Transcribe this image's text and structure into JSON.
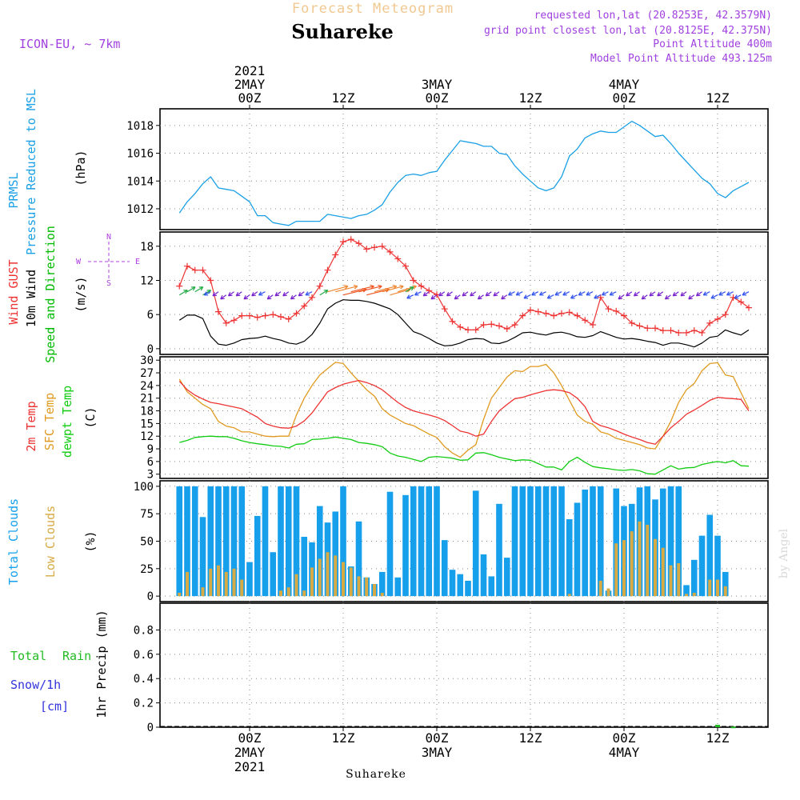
{
  "header": {
    "title": "Forecast Meteogram",
    "location": "Suhareke",
    "model": "ICON-EU, ~ 7km",
    "requested": "requested lon,lat (20.8253E, 42.3579N)",
    "grid": "grid point closest lon,lat (20.8125E, 42.375N)",
    "alt_point": "Point Altitude 400m",
    "alt_model": "Model Point Altitude 493.125m"
  },
  "footer": {
    "location": "Suhareke",
    "credit": "by Angel"
  },
  "time_axis": {
    "top_labels": [
      {
        "hour": 0,
        "lines": [
          "2021",
          "2MAY",
          "00Z"
        ]
      },
      {
        "hour": 12,
        "lines": [
          "12Z"
        ]
      },
      {
        "hour": 24,
        "lines": [
          "3MAY",
          "00Z"
        ]
      },
      {
        "hour": 36,
        "lines": [
          "12Z"
        ]
      },
      {
        "hour": 48,
        "lines": [
          "4MAY",
          "00Z"
        ]
      },
      {
        "hour": 60,
        "lines": [
          "12Z"
        ]
      }
    ],
    "bottom_labels": [
      {
        "hour": 0,
        "lines": [
          "00Z",
          "2MAY",
          "2021"
        ]
      },
      {
        "hour": 12,
        "lines": [
          "12Z"
        ]
      },
      {
        "hour": 24,
        "lines": [
          "00Z",
          "3MAY"
        ]
      },
      {
        "hour": 36,
        "lines": [
          "12Z"
        ]
      },
      {
        "hour": 48,
        "lines": [
          "00Z",
          "4MAY"
        ]
      },
      {
        "hour": 60,
        "lines": [
          "12Z"
        ]
      }
    ]
  },
  "colors": {
    "pressure": "#1aa0e6",
    "gust": "#ee3333",
    "wind": "#000000",
    "direction": "#00bb00",
    "temp2m": "#ee3333",
    "sfc": "#e09a20",
    "dew": "#11cc11",
    "total_clouds": "#16a0ec",
    "low_clouds": "#d8aa44",
    "header_title": "#f0c890",
    "header_info": "#a040e0",
    "rain": "#22bb22",
    "snow": "#3333dd"
  },
  "panels": {
    "pressure": {
      "labels": [
        "PRMSL",
        "Pressure Reduced to MSL"
      ],
      "unit": "(hPa)"
    },
    "wind": {
      "gust_label": "Wind GUST",
      "wind_label": "10m Wind",
      "dir_label": "Speed and Direction",
      "unit": "(m/s)",
      "compass": {
        "n": "N",
        "s": "S",
        "w": "W",
        "e": "E"
      }
    },
    "temp": {
      "t2m_label": "2m Temp",
      "sfc_label": "SFC Temp",
      "dew_label": "dewpt Temp",
      "unit": "(C)"
    },
    "clouds": {
      "total_label": "Total Clouds",
      "low_label": "Low Clouds",
      "unit": "(%)"
    },
    "precip": {
      "total_label": "Total",
      "rain_label": "Rain",
      "snow_label": "Snow/1h",
      "snow_unit": "[cm]",
      "axis_label": "1hr Precip (mm)"
    }
  },
  "chart_data": [
    {
      "type": "line",
      "title": "PRMSL Pressure Reduced to MSL",
      "ylabel": "(hPa)",
      "ylim": [
        1010.5,
        1019.2
      ],
      "yticks": [
        1012,
        1014,
        1016,
        1018
      ],
      "x_hours": [
        -9,
        -8,
        -7,
        -6,
        -5,
        -4,
        -3,
        -2,
        -1,
        0,
        1,
        2,
        3,
        4,
        5,
        6,
        7,
        8,
        9,
        10,
        11,
        12,
        13,
        14,
        15,
        16,
        17,
        18,
        19,
        20,
        21,
        22,
        23,
        24,
        25,
        26,
        27,
        28,
        29,
        30,
        31,
        32,
        33,
        34,
        35,
        36,
        37,
        38,
        39,
        40,
        41,
        42,
        43,
        44,
        45,
        46,
        47,
        48,
        49,
        50,
        51,
        52,
        53,
        54,
        55,
        56,
        57,
        58,
        59,
        60,
        61,
        62,
        63,
        64
      ],
      "series": [
        {
          "name": "PRMSL",
          "values": [
            1011.7,
            1012.5,
            1013.1,
            1013.8,
            1014.3,
            1013.5,
            1013.4,
            1013.3,
            1012.9,
            1012.5,
            1011.5,
            1011.5,
            1011.0,
            1010.9,
            1010.8,
            1011.1,
            1011.1,
            1011.1,
            1011.1,
            1011.6,
            1011.5,
            1011.4,
            1011.3,
            1011.5,
            1011.6,
            1011.9,
            1012.3,
            1013.2,
            1013.9,
            1014.4,
            1014.5,
            1014.4,
            1014.6,
            1014.7,
            1015.5,
            1016.2,
            1016.9,
            1016.8,
            1016.7,
            1016.5,
            1016.5,
            1016.0,
            1015.9,
            1015.1,
            1014.5,
            1014.0,
            1013.5,
            1013.3,
            1013.5,
            1014.3,
            1015.8,
            1016.3,
            1017.1,
            1017.4,
            1017.6,
            1017.5,
            1017.5,
            1017.9,
            1018.3,
            1018.0,
            1017.6,
            1017.2,
            1017.3,
            1016.7,
            1016.0,
            1015.4,
            1014.8,
            1014.2,
            1013.8,
            1013.1,
            1012.8,
            1013.3,
            1013.6,
            1013.9
          ]
        }
      ]
    },
    {
      "type": "line",
      "title": "Wind GUST / 10m Wind Speed and Direction",
      "ylabel": "(m/s)",
      "ylim": [
        -1,
        20.5
      ],
      "yticks": [
        0,
        6,
        12,
        18
      ],
      "x_hours": [
        -9,
        -8,
        -7,
        -6,
        -5,
        -4,
        -3,
        -2,
        -1,
        0,
        1,
        2,
        3,
        4,
        5,
        6,
        7,
        8,
        9,
        10,
        11,
        12,
        13,
        14,
        15,
        16,
        17,
        18,
        19,
        20,
        21,
        22,
        23,
        24,
        25,
        26,
        27,
        28,
        29,
        30,
        31,
        32,
        33,
        34,
        35,
        36,
        37,
        38,
        39,
        40,
        41,
        42,
        43,
        44,
        45,
        46,
        47,
        48,
        49,
        50,
        51,
        52,
        53,
        54,
        55,
        56,
        57,
        58,
        59,
        60,
        61,
        62,
        63,
        64
      ],
      "series": [
        {
          "name": "Wind GUST",
          "values": [
            11,
            14.5,
            13.8,
            13.8,
            12,
            6.5,
            4.5,
            5,
            5.8,
            5.8,
            5.5,
            5.8,
            6,
            5.6,
            5.2,
            6.2,
            7.5,
            9,
            11,
            13.8,
            16.5,
            18.8,
            19.2,
            18.5,
            17.5,
            17.8,
            18,
            17,
            15.8,
            14.5,
            12,
            11,
            10.2,
            9.5,
            7,
            4.8,
            3.8,
            3.3,
            3.3,
            4.2,
            4.3,
            4.0,
            3.5,
            4.2,
            5.8,
            6.8,
            6.5,
            6.2,
            5.8,
            6.2,
            6.4,
            5.8,
            5.0,
            4.2,
            9.0,
            7.0,
            6.6,
            5.8,
            4.5,
            4.0,
            3.6,
            3.6,
            3.2,
            3.2,
            2.8,
            2.8,
            3.2,
            2.8,
            4.5,
            5.2,
            6.0,
            9.0,
            8.2,
            7.2
          ]
        },
        {
          "name": "10m Wind",
          "values": [
            5,
            5.9,
            5.9,
            5.3,
            2.2,
            0.8,
            0.6,
            1.0,
            1.6,
            1.8,
            1.9,
            2.2,
            1.8,
            1.5,
            1.0,
            0.8,
            1.3,
            2.5,
            4.5,
            7.0,
            8.0,
            8.6,
            8.5,
            8.5,
            8.3,
            8.0,
            7.5,
            7.0,
            6.0,
            4.5,
            3.0,
            2.5,
            1.8,
            1.0,
            0.5,
            0.6,
            1.0,
            1.6,
            1.8,
            1.7,
            1.0,
            0.9,
            1.3,
            2.0,
            2.8,
            2.9,
            2.6,
            2.4,
            2.8,
            2.9,
            2.6,
            2.1,
            2.0,
            2.3,
            3.0,
            2.5,
            2.0,
            1.7,
            1.8,
            1.6,
            1.3,
            1.1,
            0.6,
            1.0,
            1.0,
            0.7,
            0.3,
            1.0,
            2.0,
            2.2,
            3.3,
            2.8,
            2.4,
            3.3
          ]
        }
      ],
      "direction_row_speed": 10
    },
    {
      "type": "line",
      "title": "2m Temp / SFC Temp / dewpt Temp",
      "ylabel": "(C)",
      "ylim": [
        2,
        30.8
      ],
      "yticks": [
        3,
        6,
        9,
        12,
        15,
        18,
        21,
        24,
        27,
        30
      ],
      "x_hours": [
        -9,
        -8,
        -7,
        -6,
        -5,
        -4,
        -3,
        -2,
        -1,
        0,
        1,
        2,
        3,
        4,
        5,
        6,
        7,
        8,
        9,
        10,
        11,
        12,
        13,
        14,
        15,
        16,
        17,
        18,
        19,
        20,
        21,
        22,
        23,
        24,
        25,
        26,
        27,
        28,
        29,
        30,
        31,
        32,
        33,
        34,
        35,
        36,
        37,
        38,
        39,
        40,
        41,
        42,
        43,
        44,
        45,
        46,
        47,
        48,
        49,
        50,
        51,
        52,
        53,
        54,
        55,
        56,
        57,
        58,
        59,
        60,
        61,
        62,
        63,
        64
      ],
      "series": [
        {
          "name": "2m Temp",
          "values": [
            25,
            23,
            21.7,
            20.8,
            20.0,
            19.7,
            19.3,
            18.9,
            18.5,
            17.5,
            16.5,
            15.0,
            14.4,
            14.0,
            13.9,
            14.4,
            15.6,
            17.5,
            20.0,
            22.5,
            23.5,
            24.3,
            24.8,
            25.2,
            24.7,
            24.0,
            23.0,
            21.5,
            20.0,
            18.8,
            18.0,
            17.5,
            17.0,
            16.5,
            15.7,
            14.5,
            13.2,
            12.8,
            12.0,
            12.5,
            15.5,
            18.0,
            19.5,
            20.9,
            21.2,
            21.8,
            22.3,
            22.8,
            23.0,
            22.8,
            22.3,
            21.0,
            19.0,
            15.5,
            14.5,
            14.0,
            13.3,
            12.5,
            11.8,
            11.2,
            10.5,
            10.1,
            12.0,
            14.0,
            15.5,
            17.2,
            18.2,
            19.3,
            20.5,
            21.2,
            21.0,
            20.9,
            20.7,
            18.0
          ]
        },
        {
          "name": "SFC Temp",
          "values": [
            25.5,
            22.5,
            21.0,
            19.5,
            18.5,
            15.5,
            14.4,
            14.0,
            13.0,
            13.0,
            12.5,
            12.0,
            11.9,
            12.0,
            12.0,
            17.0,
            21.0,
            24.0,
            26.5,
            28.0,
            29.5,
            29.2,
            27.0,
            25.0,
            23.0,
            21.5,
            18.5,
            17.0,
            16.0,
            15.0,
            14.5,
            13.5,
            12.5,
            11.7,
            9.5,
            8.0,
            7.0,
            8.7,
            10.0,
            16.0,
            21.0,
            23.5,
            26.0,
            27.5,
            27.3,
            28.5,
            28.5,
            29.0,
            27.0,
            24.0,
            20.5,
            17.0,
            15.5,
            14.8,
            13.0,
            12.5,
            11.5,
            11.0,
            10.5,
            10.0,
            9.2,
            9.0,
            12.0,
            15.5,
            20.0,
            23.0,
            24.5,
            27.5,
            29.2,
            29.4,
            26.5,
            26.1,
            22.3,
            18.5
          ]
        },
        {
          "name": "dewpt Temp",
          "values": [
            10.5,
            11.0,
            11.7,
            11.9,
            12.0,
            11.9,
            11.9,
            11.5,
            10.9,
            10.5,
            10.2,
            10.0,
            9.7,
            9.6,
            9.2,
            10.1,
            10.2,
            11.2,
            11.3,
            11.5,
            11.8,
            11.5,
            11.2,
            10.5,
            10.3,
            10.0,
            9.5,
            8.0,
            7.3,
            7.0,
            6.5,
            6.0,
            7.0,
            7.2,
            7.0,
            6.8,
            6.3,
            6.4,
            8.0,
            8.1,
            7.6,
            7.0,
            6.6,
            6.2,
            6.4,
            6.3,
            5.5,
            4.7,
            4.7,
            4.0,
            6.0,
            7.0,
            5.8,
            4.8,
            4.5,
            4.3,
            4.0,
            3.9,
            4.1,
            3.8,
            3.1,
            3.0,
            4.0,
            5.0,
            4.2,
            4.5,
            4.6,
            5.3,
            5.7,
            6.0,
            5.7,
            6.2,
            5.0,
            4.9
          ]
        }
      ]
    },
    {
      "type": "bar",
      "title": "Total Clouds / Low Clouds",
      "ylabel": "(%)",
      "ylim": [
        -5,
        105
      ],
      "yticks": [
        0,
        25,
        50,
        75,
        100
      ],
      "x_hours": [
        -9,
        -8,
        -7,
        -6,
        -5,
        -4,
        -3,
        -2,
        -1,
        0,
        1,
        2,
        3,
        4,
        5,
        6,
        7,
        8,
        9,
        10,
        11,
        12,
        13,
        14,
        15,
        16,
        17,
        18,
        19,
        20,
        21,
        22,
        23,
        24,
        25,
        26,
        27,
        28,
        29,
        30,
        31,
        32,
        33,
        34,
        35,
        36,
        37,
        38,
        39,
        40,
        41,
        42,
        43,
        44,
        45,
        46,
        47,
        48,
        49,
        50,
        51,
        52,
        53,
        54,
        55,
        56,
        57,
        58,
        59,
        60,
        61,
        62,
        63,
        64
      ],
      "series": [
        {
          "name": "Total Clouds",
          "values": [
            100,
            100,
            100,
            72,
            100,
            100,
            100,
            100,
            100,
            31,
            73,
            100,
            40,
            100,
            100,
            100,
            54,
            49,
            82,
            67,
            77,
            100,
            27,
            68,
            17,
            11,
            22,
            95,
            17,
            92,
            100,
            100,
            100,
            100,
            51,
            24,
            20,
            14,
            96,
            38,
            18,
            84,
            35,
            100,
            100,
            100,
            100,
            100,
            100,
            100,
            70,
            85,
            97,
            100,
            100,
            5,
            98,
            82,
            84,
            99,
            100,
            88,
            98,
            100,
            100,
            10,
            33,
            55,
            74,
            55,
            22,
            0,
            0,
            0
          ]
        },
        {
          "name": "Low Clouds",
          "values": [
            3,
            22,
            0,
            8,
            25,
            28,
            22,
            25,
            15,
            0,
            0,
            0,
            0,
            5,
            8,
            20,
            5,
            26,
            34,
            40,
            37,
            31,
            26,
            18,
            17,
            11,
            3,
            0,
            0,
            0,
            0,
            0,
            0,
            0,
            0,
            0,
            0,
            0,
            0,
            0,
            0,
            0,
            0,
            0,
            0,
            0,
            0,
            0,
            0,
            0,
            2,
            0,
            0,
            0,
            14,
            7,
            48,
            51,
            59,
            68,
            65,
            52,
            44,
            28,
            30,
            2,
            3,
            0,
            15,
            15,
            9,
            0,
            0,
            0
          ]
        }
      ]
    },
    {
      "type": "bar",
      "title": "Total Rain Snow/1h 1hr Precip",
      "ylabel": "1hr Precip (mm)",
      "ylim": [
        0,
        1.0
      ],
      "yticks": [
        "0",
        "0.2",
        "0.4",
        "0.6",
        "0.8"
      ],
      "x_hours": [
        59,
        60,
        61,
        62
      ],
      "series": [
        {
          "name": "Total Rain",
          "values": [
            0,
            0.02,
            0,
            0.005
          ]
        }
      ]
    }
  ]
}
